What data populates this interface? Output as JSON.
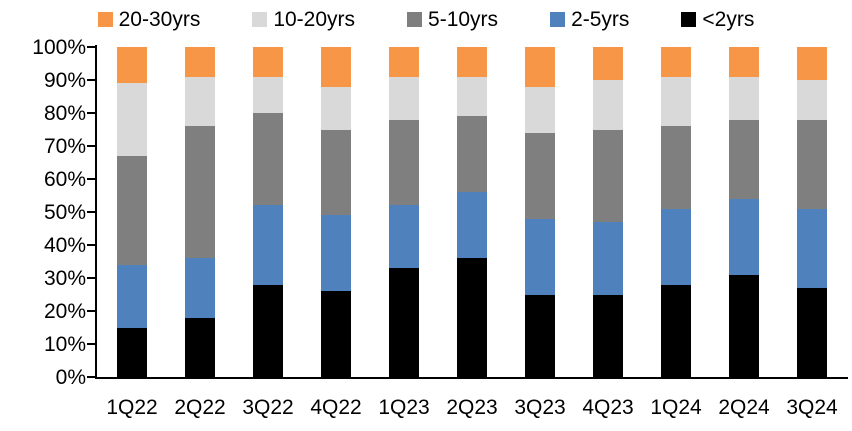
{
  "chart_data": {
    "type": "bar",
    "stacked": true,
    "percent_stacked": true,
    "title": "",
    "xlabel": "",
    "ylabel": "",
    "categories": [
      "1Q22",
      "2Q22",
      "3Q22",
      "4Q22",
      "1Q23",
      "2Q23",
      "3Q23",
      "4Q23",
      "1Q24",
      "2Q24",
      "3Q24"
    ],
    "series": [
      {
        "name": "<2yrs",
        "color": "#000000",
        "values": [
          15,
          18,
          28,
          26,
          33,
          36,
          25,
          25,
          28,
          31,
          27
        ]
      },
      {
        "name": "2-5yrs",
        "color": "#4F81BD",
        "values": [
          19,
          18,
          24,
          23,
          19,
          20,
          23,
          22,
          23,
          23,
          24
        ]
      },
      {
        "name": "5-10yrs",
        "color": "#7F7F7F",
        "values": [
          33,
          40,
          28,
          26,
          26,
          23,
          26,
          28,
          25,
          24,
          27
        ]
      },
      {
        "name": "10-20yrs",
        "color": "#D9D9D9",
        "values": [
          22,
          15,
          11,
          13,
          13,
          12,
          14,
          15,
          15,
          13,
          12
        ]
      },
      {
        "name": "20-30yrs",
        "color": "#F79646",
        "values": [
          11,
          9,
          9,
          12,
          9,
          9,
          12,
          10,
          9,
          9,
          10
        ]
      }
    ],
    "legend": {
      "position": "top",
      "order": [
        "20-30yrs",
        "10-20yrs",
        "5-10yrs",
        "2-5yrs",
        "<2yrs"
      ]
    },
    "y_axis": {
      "min": 0,
      "max": 100,
      "step": 10,
      "format": "percent",
      "tick_labels": [
        "0%",
        "10%",
        "20%",
        "30%",
        "40%",
        "50%",
        "60%",
        "70%",
        "80%",
        "90%",
        "100%"
      ]
    },
    "grid": false,
    "axis_color": "#000000",
    "background_color": "#FFFFFF"
  }
}
